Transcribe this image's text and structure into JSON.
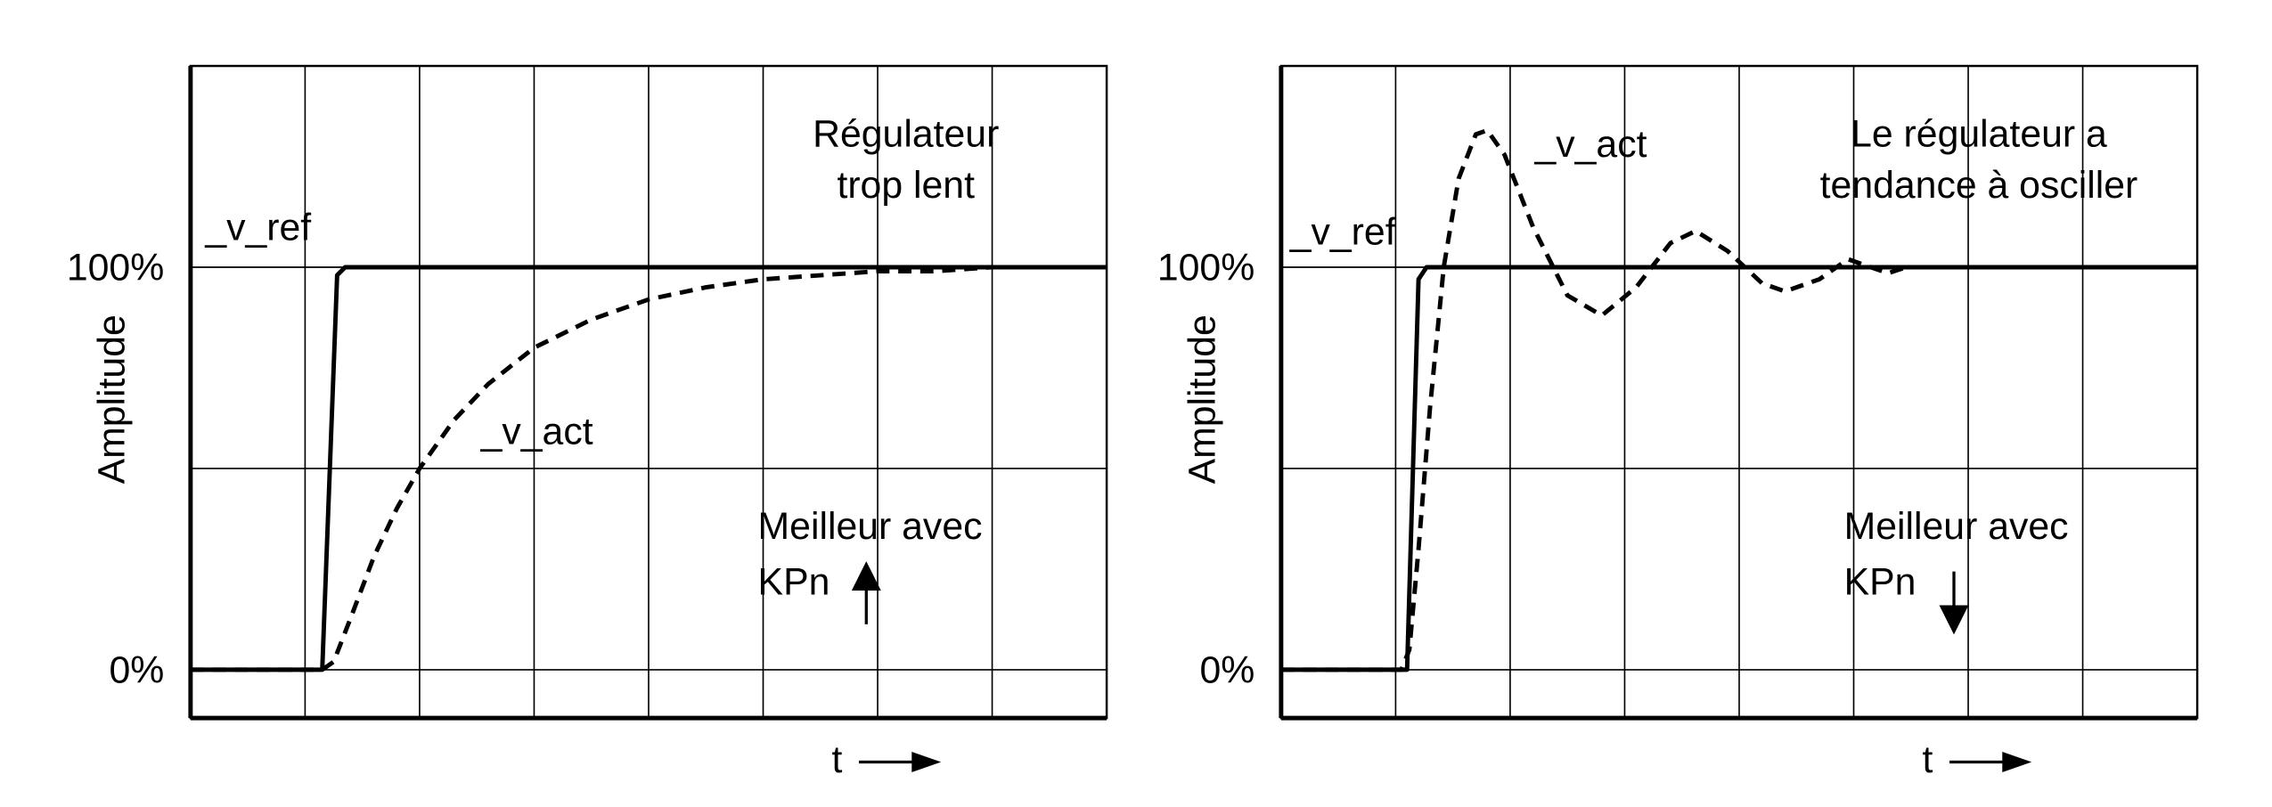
{
  "chart_data": [
    {
      "type": "line",
      "xlabel": "t",
      "ylabel": "Amplitude",
      "annotation": [
        "Régulateur",
        "trop lent"
      ],
      "hint": [
        "Meilleur avec",
        "KPn"
      ],
      "hint_arrow": "up",
      "xlim": [
        0,
        8
      ],
      "ylim": [
        -12,
        150
      ],
      "xgrid": [
        1,
        2,
        3,
        4,
        5,
        6,
        7
      ],
      "ygrid": [
        0,
        50,
        100
      ],
      "yticks": [
        {
          "value": 0,
          "label": "0%"
        },
        {
          "value": 100,
          "label": "100%"
        }
      ],
      "series": [
        {
          "name": "_v_ref",
          "color": "#000000",
          "dash": false,
          "x": [
            0,
            1.15,
            1.28,
            1.35,
            8
          ],
          "values": [
            0,
            0,
            98,
            100,
            100
          ]
        },
        {
          "name": "_v_act",
          "color": "#000000",
          "dash": true,
          "x": [
            0,
            1.15,
            1.25,
            1.4,
            1.6,
            1.8,
            2,
            2.3,
            2.6,
            3,
            3.5,
            4,
            4.5,
            5,
            5.5,
            6,
            6.5,
            7,
            7.5
          ],
          "values": [
            0,
            0,
            2,
            13,
            28,
            40,
            50,
            62,
            71,
            80,
            87,
            92,
            95,
            97,
            98,
            99,
            99,
            100,
            100
          ]
        }
      ]
    },
    {
      "type": "line",
      "xlabel": "t",
      "ylabel": "Amplitude",
      "annotation": [
        "Le régulateur a",
        "tendance à osciller"
      ],
      "hint": [
        "Meilleur avec",
        "KPn"
      ],
      "hint_arrow": "down",
      "xlim": [
        0,
        8
      ],
      "ylim": [
        -12,
        150
      ],
      "xgrid": [
        1,
        2,
        3,
        4,
        5,
        6,
        7
      ],
      "ygrid": [
        0,
        50,
        100
      ],
      "yticks": [
        {
          "value": 0,
          "label": "0%"
        },
        {
          "value": 100,
          "label": "100%"
        }
      ],
      "series": [
        {
          "name": "_v_ref",
          "color": "#000000",
          "dash": false,
          "x": [
            0,
            1.1,
            1.2,
            1.27,
            8
          ],
          "values": [
            0,
            0,
            97,
            100,
            100
          ]
        },
        {
          "name": "_v_act",
          "color": "#000000",
          "dash": true,
          "x": [
            0,
            1.05,
            1.12,
            1.2,
            1.3,
            1.42,
            1.55,
            1.7,
            1.8,
            1.95,
            2.2,
            2.5,
            2.8,
            3.1,
            3.4,
            3.62,
            3.9,
            4.2,
            4.4,
            4.7,
            4.95,
            5.15,
            5.3,
            5.46
          ],
          "values": [
            0,
            0,
            5,
            30,
            65,
            100,
            122,
            133,
            134,
            128,
            110,
            93,
            88,
            95,
            106,
            109,
            104,
            96,
            94,
            97,
            102,
            100,
            98.5,
            100
          ]
        }
      ]
    }
  ]
}
